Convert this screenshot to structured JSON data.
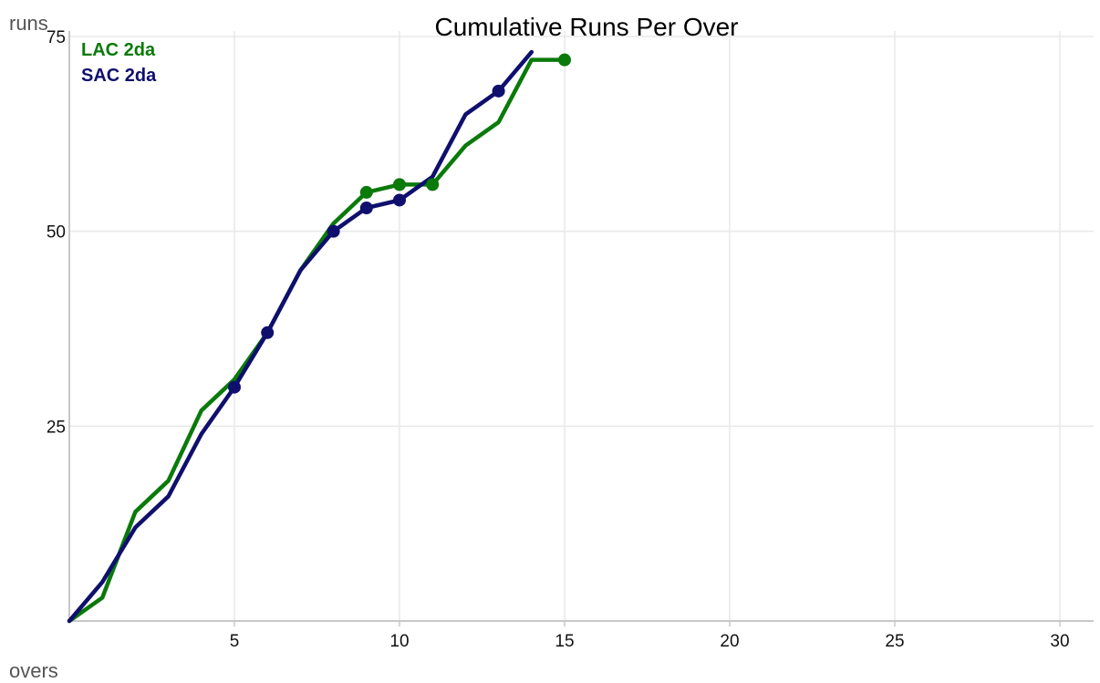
{
  "chart_data": {
    "type": "line",
    "title": "Cumulative Runs Per Over",
    "xlabel": "overs",
    "ylabel": "runs",
    "xlim": [
      0,
      31
    ],
    "ylim": [
      0,
      75
    ],
    "x_ticks": [
      5,
      10,
      15,
      20,
      25,
      30
    ],
    "y_ticks": [
      25,
      50,
      75
    ],
    "grid": true,
    "legend_position": "top-left",
    "series": [
      {
        "name": "LAC 2da",
        "color": "#0a7a0a",
        "x": [
          0,
          1,
          2,
          3,
          4,
          5,
          6,
          7,
          8,
          9,
          10,
          11,
          12,
          13,
          14,
          15
        ],
        "y": [
          0,
          3,
          14,
          18,
          27,
          31,
          37,
          45,
          51,
          55,
          56,
          56,
          61,
          64,
          72,
          72
        ],
        "marker_x": [
          9,
          10,
          11,
          15
        ],
        "marker_y": [
          55,
          56,
          56,
          72
        ]
      },
      {
        "name": "SAC 2da",
        "color": "#0f0f6e",
        "x": [
          0,
          1,
          2,
          3,
          4,
          5,
          6,
          7,
          8,
          9,
          10,
          11,
          12,
          13,
          14
        ],
        "y": [
          0,
          5,
          12,
          16,
          24,
          30,
          37,
          45,
          50,
          53,
          54,
          57,
          65,
          68,
          73
        ],
        "marker_x": [
          5,
          6,
          8,
          9,
          10,
          13
        ],
        "marker_y": [
          30,
          37,
          50,
          53,
          54,
          68
        ]
      }
    ]
  }
}
